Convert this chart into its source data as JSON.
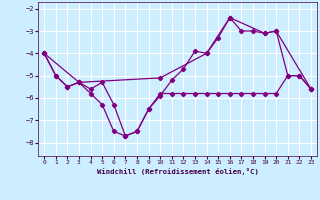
{
  "xlabel": "Windchill (Refroidissement éolien,°C)",
  "background_color": "#cceeff",
  "grid_color": "#ffffff",
  "line_color": "#800080",
  "x_ticks": [
    0,
    1,
    2,
    3,
    4,
    5,
    6,
    7,
    8,
    9,
    10,
    11,
    12,
    13,
    14,
    15,
    16,
    17,
    18,
    19,
    20,
    21,
    22,
    23
  ],
  "y_ticks": [
    -8,
    -7,
    -6,
    -5,
    -4,
    -3,
    -2
  ],
  "ylim": [
    -8.6,
    -1.7
  ],
  "xlim": [
    -0.5,
    23.5
  ],
  "series1": {
    "x": [
      0,
      1,
      2,
      3,
      4,
      5,
      6,
      7,
      8,
      9,
      10,
      11,
      12,
      13,
      14,
      15,
      16,
      17,
      18,
      19,
      20,
      21,
      22,
      23
    ],
    "y": [
      -4.0,
      -5.0,
      -5.5,
      -5.3,
      -5.8,
      -6.3,
      -7.5,
      -7.7,
      -7.5,
      -6.5,
      -5.8,
      -5.8,
      -5.8,
      -5.8,
      -5.8,
      -5.8,
      -5.8,
      -5.8,
      -5.8,
      -5.8,
      -5.8,
      -5.0,
      -5.0,
      -5.6
    ]
  },
  "series2": {
    "x": [
      0,
      1,
      2,
      3,
      4,
      5,
      6,
      7,
      8,
      9,
      10,
      11,
      12,
      13,
      14,
      15,
      16,
      17,
      18,
      19,
      20,
      21,
      22,
      23
    ],
    "y": [
      -4.0,
      -5.0,
      -5.5,
      -5.3,
      -5.6,
      -5.3,
      -6.3,
      -7.7,
      -7.5,
      -6.5,
      -5.9,
      -5.2,
      -4.7,
      -3.9,
      -4.0,
      -3.3,
      -2.4,
      -3.0,
      -3.0,
      -3.1,
      -3.0,
      -5.0,
      -5.0,
      -5.6
    ]
  },
  "series3": {
    "x": [
      0,
      3,
      10,
      14,
      16,
      19,
      20,
      23
    ],
    "y": [
      -4.0,
      -5.3,
      -5.1,
      -4.0,
      -2.4,
      -3.1,
      -3.0,
      -5.6
    ]
  }
}
